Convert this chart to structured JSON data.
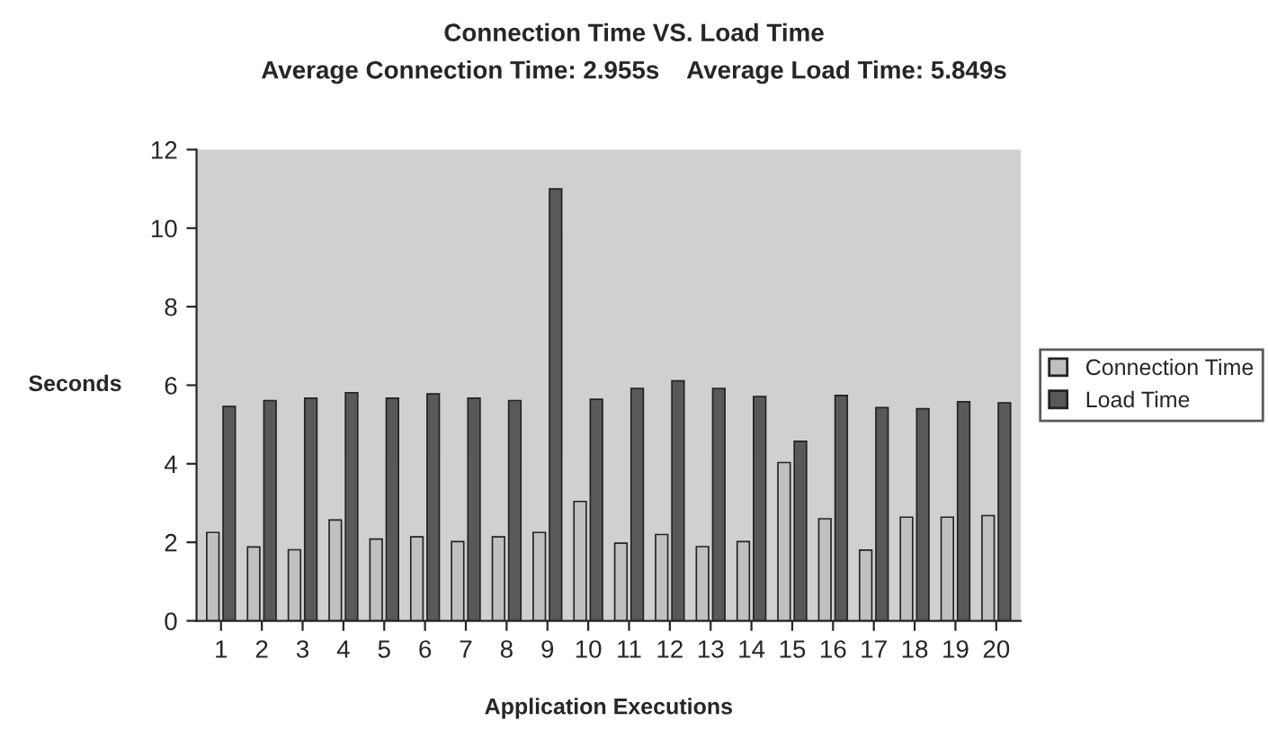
{
  "chart_data": {
    "type": "bar",
    "title": "Connection Time VS. Load Time",
    "subtitle": "Average Connection Time: 2.955s    Average Load Time: 5.849s",
    "xlabel": "Application Executions",
    "ylabel": "Seconds",
    "categories": [
      "1",
      "2",
      "3",
      "4",
      "5",
      "6",
      "7",
      "8",
      "9",
      "10",
      "11",
      "12",
      "13",
      "14",
      "15",
      "16",
      "17",
      "18",
      "19",
      "20"
    ],
    "series": [
      {
        "name": "Connection Time",
        "color": "#c0c0c0",
        "values": [
          2.25,
          1.88,
          1.81,
          2.57,
          2.08,
          2.14,
          2.02,
          2.14,
          2.25,
          3.04,
          1.98,
          2.2,
          1.89,
          2.02,
          4.03,
          2.6,
          1.8,
          2.64,
          2.64,
          2.68
        ]
      },
      {
        "name": "Load Time",
        "color": "#595959",
        "values": [
          5.46,
          5.61,
          5.67,
          5.81,
          5.67,
          5.78,
          5.67,
          5.61,
          11.0,
          5.64,
          5.92,
          6.11,
          5.92,
          5.71,
          4.57,
          5.74,
          5.43,
          5.4,
          5.58,
          5.55
        ]
      }
    ],
    "ylim": [
      0,
      12
    ],
    "yticks": [
      0,
      2,
      4,
      6,
      8,
      10,
      12
    ],
    "grid": false,
    "legend": "right"
  }
}
